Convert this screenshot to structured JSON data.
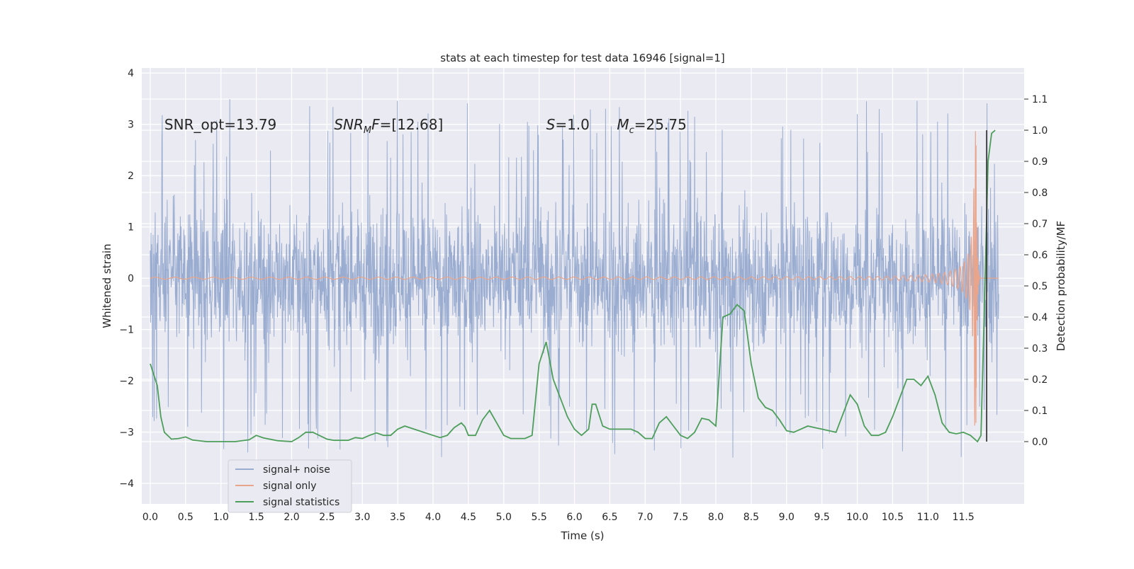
{
  "chart_data": {
    "type": "line",
    "title": "stats at each timestep for test data 16946 [signal=1]",
    "xlabel": "Time (s)",
    "ylabel": "Whitened strain",
    "y2label": "Detection probability/MF",
    "xlim": [
      -0.12,
      12.36
    ],
    "ylim": [
      -4.4,
      4.1
    ],
    "y2lim": [
      -0.2,
      1.2
    ],
    "x_ticks": [
      "0.0",
      "0.5",
      "1.0",
      "1.5",
      "2.0",
      "2.5",
      "3.0",
      "3.5",
      "4.0",
      "4.5",
      "5.0",
      "5.5",
      "6.0",
      "6.5",
      "7.0",
      "7.5",
      "8.0",
      "8.5",
      "9.0",
      "9.5",
      "10.0",
      "10.5",
      "11.0",
      "11.5"
    ],
    "y_ticks": [
      "4",
      "3",
      "2",
      "1",
      "0",
      "−1",
      "−2",
      "−3",
      "−4"
    ],
    "y2_ticks": [
      "1.1",
      "1.0",
      "0.9",
      "0.8",
      "0.7",
      "0.6",
      "0.5",
      "0.4",
      "0.3",
      "0.2",
      "0.1",
      "0.0"
    ],
    "grid": true,
    "legend_position": "lower-left",
    "annotations": [
      {
        "label": "SNR_opt=13.79",
        "x": 0.2,
        "y": 2.9
      },
      {
        "label": "SNR",
        "sub": "M",
        "suffix": "F=[12.68]",
        "italic": true,
        "x": 2.6,
        "y": 2.9
      },
      {
        "label": "S",
        "suffix": "=1.0",
        "italic": true,
        "x": 5.6,
        "y": 2.9
      },
      {
        "label": "M",
        "sub": "c",
        "suffix": "=25.75",
        "italic": true,
        "x": 6.6,
        "y": 2.9
      }
    ],
    "series": [
      {
        "name": "signal+ noise",
        "color": "#9aadd1",
        "axis": "left",
        "kind": "noise",
        "x_range": [
          0.0,
          12.0
        ],
        "typical_amplitude": 1.0,
        "peak_max": 3.7,
        "peak_min": -4.1
      },
      {
        "name": "signal only",
        "color": "#e9a58b",
        "axis": "left",
        "kind": "chirp",
        "x_range": [
          0.0,
          12.0
        ],
        "merger_time": 11.68,
        "peak_max": 3.0,
        "peak_min": -2.6
      },
      {
        "name": "signal statistics",
        "color": "#4c9e5a",
        "axis": "right",
        "x": [
          0.0,
          0.1,
          0.15,
          0.2,
          0.3,
          0.4,
          0.5,
          0.6,
          0.8,
          1.0,
          1.2,
          1.4,
          1.5,
          1.6,
          1.8,
          2.0,
          2.1,
          2.2,
          2.3,
          2.5,
          2.6,
          2.8,
          2.9,
          3.0,
          3.1,
          3.2,
          3.3,
          3.4,
          3.5,
          3.6,
          3.8,
          4.0,
          4.1,
          4.2,
          4.3,
          4.4,
          4.45,
          4.5,
          4.6,
          4.7,
          4.8,
          4.9,
          5.0,
          5.1,
          5.2,
          5.3,
          5.4,
          5.5,
          5.6,
          5.7,
          5.8,
          5.9,
          6.0,
          6.1,
          6.2,
          6.25,
          6.3,
          6.4,
          6.5,
          6.6,
          6.7,
          6.8,
          6.9,
          7.0,
          7.1,
          7.2,
          7.3,
          7.4,
          7.5,
          7.6,
          7.7,
          7.8,
          7.9,
          8.0,
          8.1,
          8.2,
          8.3,
          8.4,
          8.5,
          8.6,
          8.7,
          8.8,
          8.9,
          9.0,
          9.1,
          9.2,
          9.3,
          9.4,
          9.5,
          9.6,
          9.7,
          9.8,
          9.9,
          10.0,
          10.1,
          10.2,
          10.3,
          10.4,
          10.5,
          10.6,
          10.7,
          10.8,
          10.9,
          11.0,
          11.1,
          11.2,
          11.3,
          11.4,
          11.5,
          11.6,
          11.7,
          11.75,
          11.8,
          11.85,
          11.9,
          11.95
        ],
        "values": [
          0.25,
          0.18,
          0.08,
          0.03,
          0.008,
          0.01,
          0.015,
          0.005,
          0.0,
          0.0,
          0.0,
          0.006,
          0.02,
          0.012,
          0.003,
          0.0,
          0.013,
          0.03,
          0.03,
          0.008,
          0.004,
          0.004,
          0.013,
          0.01,
          0.02,
          0.028,
          0.02,
          0.02,
          0.04,
          0.05,
          0.035,
          0.02,
          0.013,
          0.02,
          0.045,
          0.06,
          0.048,
          0.02,
          0.02,
          0.07,
          0.1,
          0.06,
          0.02,
          0.01,
          0.01,
          0.01,
          0.02,
          0.25,
          0.32,
          0.2,
          0.14,
          0.08,
          0.04,
          0.02,
          0.04,
          0.12,
          0.12,
          0.05,
          0.04,
          0.04,
          0.04,
          0.04,
          0.03,
          0.01,
          0.01,
          0.06,
          0.08,
          0.05,
          0.02,
          0.01,
          0.03,
          0.075,
          0.07,
          0.05,
          0.4,
          0.41,
          0.44,
          0.42,
          0.25,
          0.14,
          0.11,
          0.1,
          0.07,
          0.035,
          0.03,
          0.04,
          0.05,
          0.045,
          0.04,
          0.035,
          0.03,
          0.09,
          0.15,
          0.12,
          0.05,
          0.02,
          0.02,
          0.03,
          0.08,
          0.14,
          0.2,
          0.2,
          0.18,
          0.21,
          0.15,
          0.06,
          0.03,
          0.025,
          0.03,
          0.02,
          0.0,
          0.02,
          0.45,
          0.9,
          0.99,
          1.0
        ]
      }
    ]
  }
}
